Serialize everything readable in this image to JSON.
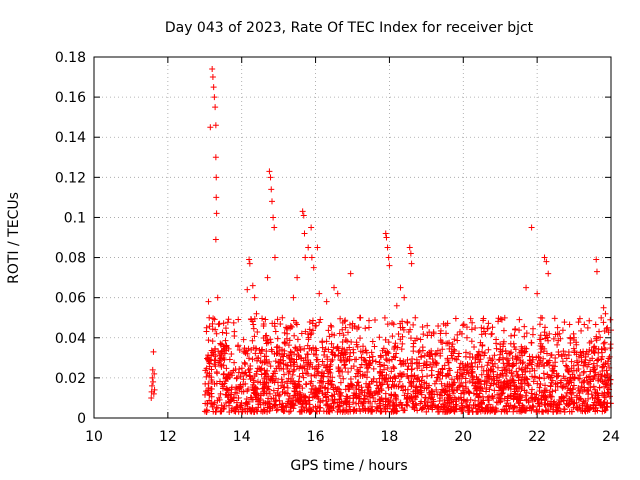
{
  "chart_data": {
    "type": "scatter",
    "title": "Day 043 of 2023, Rate Of TEC Index for receiver bjct",
    "xlabel": "GPS time / hours",
    "ylabel": "ROTI / TECUs",
    "xlim": [
      10,
      24
    ],
    "ylim": [
      0,
      0.18
    ],
    "xticks": [
      "10",
      "12",
      "14",
      "16",
      "18",
      "20",
      "22",
      "24"
    ],
    "yticks": [
      "0",
      "0.02",
      "0.04",
      "0.06",
      "0.08",
      "0.1",
      "0.12",
      "0.14",
      "0.16",
      "0.18"
    ],
    "grid": true,
    "marker": "+",
    "color": "#ff0000",
    "series": [
      {
        "name": "ROTI",
        "points": [
          [
            11.55,
            0.01
          ],
          [
            11.56,
            0.013
          ],
          [
            11.57,
            0.016
          ],
          [
            11.58,
            0.02
          ],
          [
            11.59,
            0.024
          ],
          [
            11.6,
            0.018
          ],
          [
            11.61,
            0.033
          ],
          [
            11.62,
            0.012
          ],
          [
            11.63,
            0.022
          ],
          [
            11.64,
            0.014
          ],
          [
            13.15,
            0.145
          ],
          [
            13.2,
            0.174
          ],
          [
            13.22,
            0.17
          ],
          [
            13.24,
            0.165
          ],
          [
            13.26,
            0.16
          ],
          [
            13.28,
            0.155
          ],
          [
            13.3,
            0.146
          ],
          [
            13.3,
            0.13
          ],
          [
            13.31,
            0.12
          ],
          [
            13.31,
            0.11
          ],
          [
            13.32,
            0.102
          ],
          [
            13.3,
            0.089
          ],
          [
            13.1,
            0.058
          ],
          [
            13.12,
            0.05
          ],
          [
            13.05,
            0.045
          ],
          [
            13.35,
            0.06
          ],
          [
            13.4,
            0.047
          ],
          [
            14.2,
            0.079
          ],
          [
            14.22,
            0.077
          ],
          [
            14.15,
            0.064
          ],
          [
            14.3,
            0.066
          ],
          [
            14.35,
            0.06
          ],
          [
            14.4,
            0.052
          ],
          [
            14.75,
            0.123
          ],
          [
            14.78,
            0.12
          ],
          [
            14.8,
            0.114
          ],
          [
            14.82,
            0.108
          ],
          [
            14.85,
            0.1
          ],
          [
            14.88,
            0.095
          ],
          [
            14.9,
            0.08
          ],
          [
            14.7,
            0.07
          ],
          [
            15.1,
            0.05
          ],
          [
            15.4,
            0.06
          ],
          [
            15.5,
            0.07
          ],
          [
            15.65,
            0.103
          ],
          [
            15.68,
            0.101
          ],
          [
            15.7,
            0.092
          ],
          [
            15.72,
            0.08
          ],
          [
            15.8,
            0.085
          ],
          [
            15.88,
            0.095
          ],
          [
            15.9,
            0.08
          ],
          [
            15.95,
            0.075
          ],
          [
            16.05,
            0.085
          ],
          [
            16.1,
            0.062
          ],
          [
            16.3,
            0.058
          ],
          [
            16.5,
            0.065
          ],
          [
            16.6,
            0.062
          ],
          [
            16.95,
            0.072
          ],
          [
            17.2,
            0.05
          ],
          [
            17.9,
            0.092
          ],
          [
            17.92,
            0.09
          ],
          [
            17.95,
            0.085
          ],
          [
            17.98,
            0.08
          ],
          [
            18.0,
            0.076
          ],
          [
            18.2,
            0.056
          ],
          [
            18.3,
            0.065
          ],
          [
            18.4,
            0.06
          ],
          [
            18.55,
            0.085
          ],
          [
            18.58,
            0.082
          ],
          [
            18.6,
            0.077
          ],
          [
            18.7,
            0.05
          ],
          [
            19.2,
            0.042
          ],
          [
            20.1,
            0.04
          ],
          [
            20.6,
            0.042
          ],
          [
            21.1,
            0.038
          ],
          [
            21.7,
            0.065
          ],
          [
            21.85,
            0.095
          ],
          [
            22.0,
            0.062
          ],
          [
            22.1,
            0.05
          ],
          [
            22.2,
            0.08
          ],
          [
            22.25,
            0.078
          ],
          [
            22.3,
            0.072
          ],
          [
            22.6,
            0.042
          ],
          [
            23.0,
            0.04
          ],
          [
            23.6,
            0.079
          ],
          [
            23.62,
            0.073
          ],
          [
            23.8,
            0.055
          ],
          [
            23.85,
            0.052
          ],
          [
            23.9,
            0.045
          ],
          [
            23.95,
            0.025
          ]
        ]
      }
    ],
    "dense_band": {
      "x_start": 13.0,
      "x_end": 24.0,
      "y_min": 0.003,
      "y_typical_max": 0.035,
      "y_occasional_max": 0.06
    }
  }
}
